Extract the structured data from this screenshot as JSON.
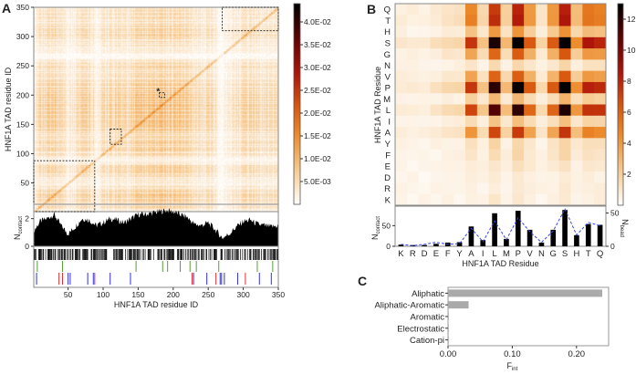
{
  "chart_data": [
    {
      "panel": "A",
      "type": "heatmap",
      "ylabel": "HNF1A TAD residue ID",
      "xlabel": "HNF1A TAD residue ID",
      "range": [
        1,
        350
      ],
      "ticks": [
        50,
        100,
        150,
        200,
        250,
        300,
        350
      ],
      "tick_labels": [
        "50",
        "100",
        "150",
        "200",
        "250",
        "300",
        "350"
      ],
      "colorbar": {
        "range": [
          0,
          0.044
        ],
        "ticks": [
          0.005,
          0.01,
          0.015,
          0.02,
          0.025,
          0.03,
          0.035,
          0.04
        ],
        "tick_labels": [
          "5.0E-03",
          "1.0E-02",
          "1.5E-02",
          "2.0E-02",
          "2.5E-02",
          "3.0E-02",
          "3.5E-02",
          "4.0E-02"
        ]
      },
      "annotation": "*",
      "highlight_boxes_residues": [
        [
          270,
          350,
          310,
          350
        ],
        [
          180,
          188,
          196,
          204
        ],
        [
          110,
          126,
          116,
          142
        ],
        [
          1,
          88,
          1,
          88
        ]
      ],
      "contact_profile": {
        "ylabel": "N",
        "ylabel_sub": "contact",
        "yticks": [
          0,
          2
        ],
        "ytick_labels": [
          "0",
          "2"
        ],
        "x": [
          1,
          10,
          20,
          30,
          40,
          50,
          60,
          70,
          80,
          90,
          100,
          110,
          120,
          130,
          140,
          150,
          160,
          170,
          180,
          190,
          200,
          210,
          220,
          230,
          240,
          250,
          260,
          270,
          280,
          290,
          300,
          310,
          320,
          330,
          340,
          350
        ],
        "y": [
          1.1,
          1.8,
          2.0,
          2.3,
          1.5,
          0.9,
          1.4,
          2.0,
          1.9,
          1.5,
          1.7,
          2.0,
          1.9,
          1.7,
          2.0,
          2.3,
          2.3,
          2.4,
          2.5,
          2.6,
          2.5,
          2.3,
          2.1,
          1.6,
          1.5,
          1.7,
          1.2,
          0.6,
          0.9,
          1.4,
          1.8,
          1.9,
          1.6,
          1.5,
          1.4,
          1.5
        ]
      },
      "residue_marks": {
        "green": [
          6,
          42,
          147,
          185,
          192,
          210,
          224,
          233,
          265,
          320,
          342
        ],
        "red": [
          37,
          42,
          88,
          227,
          261,
          303
        ],
        "blue": [
          5,
          50,
          53,
          78,
          86,
          110,
          139,
          229,
          248,
          267,
          269,
          273,
          292,
          323,
          340
        ]
      }
    },
    {
      "panel": "B",
      "type": "heatmap",
      "ylabel": "HNF1A TAD Residue",
      "xlabel": "HNF1A TAD Residue",
      "residues": [
        "K",
        "R",
        "D",
        "E",
        "F",
        "Y",
        "A",
        "I",
        "L",
        "M",
        "P",
        "V",
        "N",
        "G",
        "S",
        "H",
        "T",
        "Q"
      ],
      "colorbar": {
        "range": [
          0,
          13
        ],
        "ticks": [
          2,
          4,
          6,
          8,
          10,
          12
        ],
        "tick_labels": [
          "2",
          "4",
          "6",
          "8",
          "10",
          "12"
        ]
      },
      "bars": {
        "type": "bar",
        "ylabel": "N",
        "ylabel_sub": "contact",
        "y2label": "N",
        "y2label_sub": "bead",
        "ylim": [
          0,
          95
        ],
        "yticks": [
          0,
          50
        ],
        "ytick_labels": [
          "0",
          "50"
        ],
        "y2lim": [
          0,
          59
        ],
        "y2ticks": [
          0,
          50
        ],
        "y2tick_labels": [
          "0",
          "50"
        ],
        "n_contact": [
          4,
          3,
          3,
          6,
          9,
          10,
          48,
          15,
          80,
          18,
          86,
          40,
          9,
          40,
          88,
          27,
          54,
          52
        ],
        "n_bead": [
          3,
          1,
          3,
          6,
          3,
          4,
          27,
          7,
          38,
          10,
          43,
          22,
          6,
          23,
          56,
          17,
          36,
          31
        ]
      }
    },
    {
      "panel": "C",
      "type": "bar",
      "orientation": "horizontal",
      "categories": [
        "Aliphatic",
        "Aliphatic-Aromatic",
        "Aromatic",
        "Electrostatic",
        "Cation-pi"
      ],
      "values": [
        0.24,
        0.032,
        0.001,
        0.001,
        0.001
      ],
      "xlabel": "F",
      "xlabel_sub": "int",
      "xlim": [
        0,
        0.25
      ],
      "xticks": [
        0,
        0.1,
        0.2
      ],
      "xtick_labels": [
        "0.00",
        "0.10",
        "0.20"
      ],
      "color": "#aaaaaa"
    }
  ],
  "panels": {
    "a": "A",
    "b": "B",
    "c": "C"
  }
}
